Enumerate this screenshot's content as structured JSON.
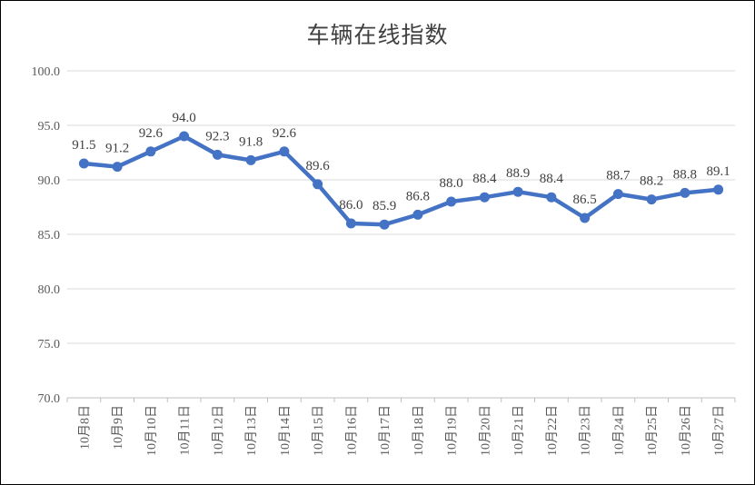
{
  "chart_data": {
    "type": "line",
    "title": "车辆在线指数",
    "xlabel": "",
    "ylabel": "",
    "categories": [
      "10月8日",
      "10月9日",
      "10月10日",
      "10月11日",
      "10月12日",
      "10月13日",
      "10月14日",
      "10月15日",
      "10月16日",
      "10月17日",
      "10月18日",
      "10月19日",
      "10月20日",
      "10月21日",
      "10月22日",
      "10月23日",
      "10月24日",
      "10月25日",
      "10月26日",
      "10月27日"
    ],
    "series": [
      {
        "name": "车辆在线指数",
        "values": [
          91.5,
          91.2,
          92.6,
          94.0,
          92.3,
          91.8,
          92.6,
          89.6,
          86.0,
          85.9,
          86.8,
          88.0,
          88.4,
          88.9,
          88.4,
          86.5,
          88.7,
          88.2,
          88.8,
          89.1
        ],
        "value_labels": [
          "91.5",
          "91.2",
          "92.6",
          "94.0",
          "92.3",
          "91.8",
          "92.6",
          "89.6",
          "86.0",
          "85.9",
          "86.8",
          "88.0",
          "88.4",
          "88.9",
          "88.4",
          "86.5",
          "88.7",
          "88.2",
          "88.8",
          "89.1"
        ],
        "color": "#4472C4"
      }
    ],
    "ylim": [
      70.0,
      100.0
    ],
    "yticks": [
      70.0,
      75.0,
      80.0,
      85.0,
      90.0,
      95.0,
      100.0
    ],
    "ytick_labels": [
      "70.0",
      "75.0",
      "80.0",
      "85.0",
      "90.0",
      "95.0",
      "100.0"
    ],
    "grid": true,
    "legend": "none"
  },
  "colors": {
    "line": "#4472C4",
    "grid": "#D9D9D9",
    "axis": "#BFBFBF"
  }
}
